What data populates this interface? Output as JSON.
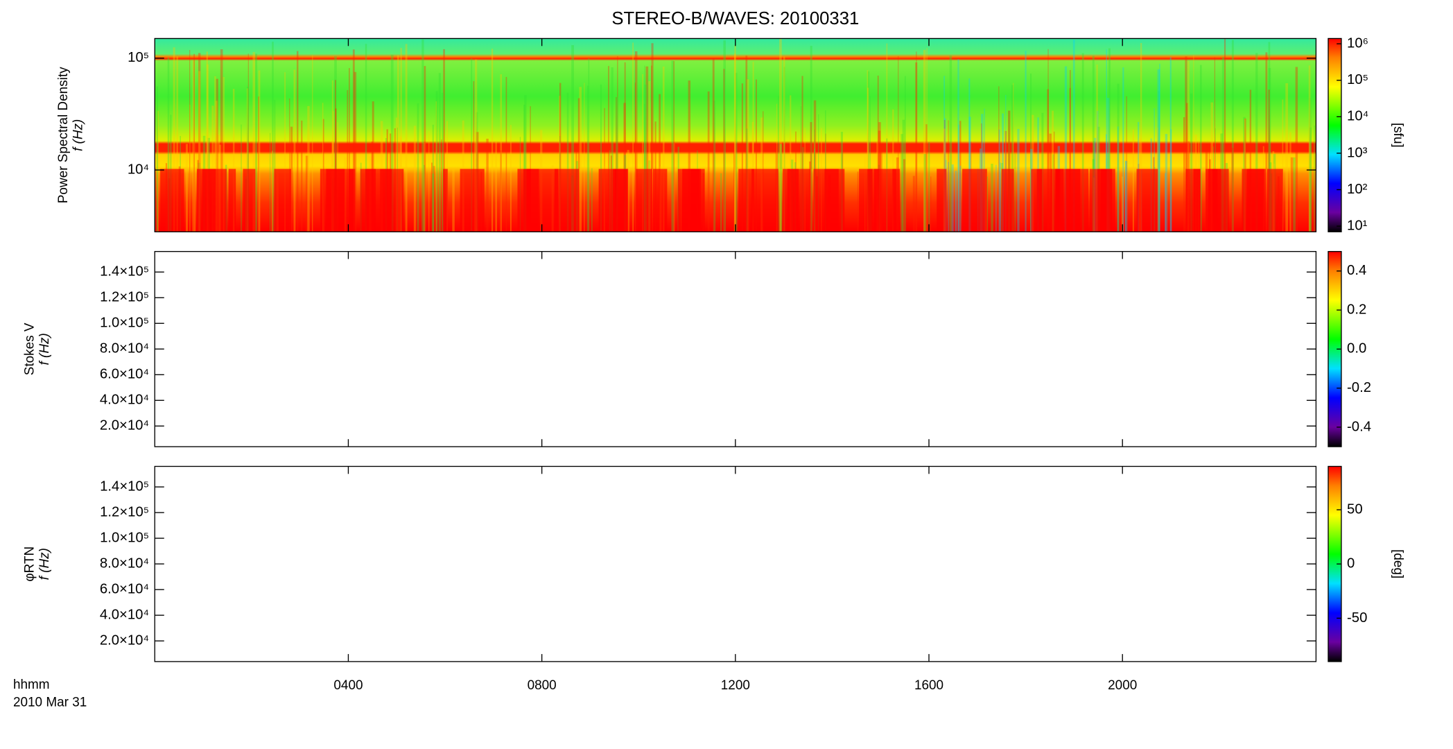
{
  "chart_data": {
    "type": "spectrogram",
    "title": "STEREO-B/WAVES: 20100331",
    "xlabel": [
      "hhmm",
      "2010 Mar 31"
    ],
    "xlim": [
      0,
      24
    ],
    "xticks": [
      {
        "value": 4,
        "label": "0400"
      },
      {
        "value": 8,
        "label": "0800"
      },
      {
        "value": 12,
        "label": "1200"
      },
      {
        "value": 16,
        "label": "1600"
      },
      {
        "value": 20,
        "label": "2000"
      }
    ],
    "panels": [
      {
        "ylabel": [
          "Power Spectral Density",
          "f (Hz)"
        ],
        "ylog": true,
        "ylim": [
          2800,
          150000
        ],
        "yticks": [
          {
            "value": 10000,
            "label": "10⁴"
          },
          {
            "value": 100000,
            "label": "10⁵"
          }
        ],
        "colorbar": {
          "log": true,
          "lim": [
            7,
            1400000
          ],
          "label": "[sfu]",
          "ticks": [
            {
              "value": 10,
              "label": "10¹"
            },
            {
              "value": 100,
              "label": "10²"
            },
            {
              "value": 1000,
              "label": "10³"
            },
            {
              "value": 10000,
              "label": "10⁴"
            },
            {
              "value": 100000,
              "label": "10⁵"
            },
            {
              "value": 1000000,
              "label": "10⁶"
            }
          ]
        }
      },
      {
        "ylabel": [
          "Stokes V",
          "f (Hz)"
        ],
        "ylog": false,
        "ylim": [
          3900,
          156000
        ],
        "yticks": [
          {
            "value": 20000,
            "label": "2.0×10⁴"
          },
          {
            "value": 40000,
            "label": "4.0×10⁴"
          },
          {
            "value": 60000,
            "label": "6.0×10⁴"
          },
          {
            "value": 80000,
            "label": "8.0×10⁴"
          },
          {
            "value": 100000,
            "label": "1.0×10⁵"
          },
          {
            "value": 120000,
            "label": "1.2×10⁵"
          },
          {
            "value": 140000,
            "label": "1.4×10⁵"
          }
        ],
        "colorbar": {
          "log": false,
          "lim": [
            -0.5,
            0.5
          ],
          "ticks": [
            {
              "value": -0.4,
              "label": "-0.4"
            },
            {
              "value": -0.2,
              "label": "-0.2"
            },
            {
              "value": 0,
              "label": "0.0"
            },
            {
              "value": 0.2,
              "label": "0.2"
            },
            {
              "value": 0.4,
              "label": "0.4"
            }
          ]
        }
      },
      {
        "ylabel": [
          "φRTN",
          "f (Hz)"
        ],
        "ylog": false,
        "ylim": [
          3900,
          156000
        ],
        "yticks": [
          {
            "value": 20000,
            "label": "2.0×10⁴"
          },
          {
            "value": 40000,
            "label": "4.0×10⁴"
          },
          {
            "value": 60000,
            "label": "6.0×10⁴"
          },
          {
            "value": 80000,
            "label": "8.0×10⁴"
          },
          {
            "value": 100000,
            "label": "1.0×10⁵"
          },
          {
            "value": 120000,
            "label": "1.2×10⁵"
          },
          {
            "value": 140000,
            "label": "1.4×10⁵"
          }
        ],
        "colorbar": {
          "log": false,
          "lim": [
            -90,
            90
          ],
          "label": "[deg]",
          "ticks": [
            -50,
            0,
            50
          ]
        }
      }
    ]
  }
}
